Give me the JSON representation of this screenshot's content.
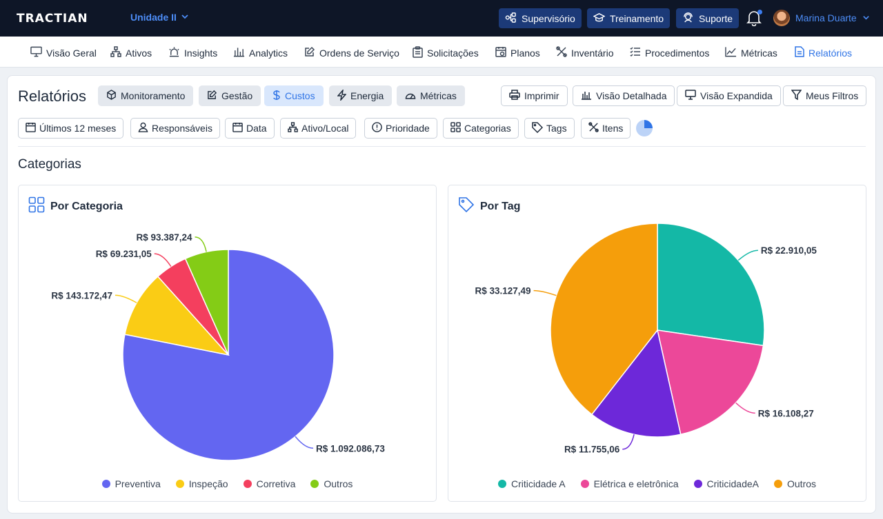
{
  "header": {
    "logo": "TRACTIAN",
    "unit": "Unidade II",
    "buttons": [
      {
        "label": "Supervisório",
        "icon": "workflow-icon"
      },
      {
        "label": "Treinamento",
        "icon": "graduation-cap-icon"
      },
      {
        "label": "Suporte",
        "icon": "headset-icon"
      }
    ],
    "user_name": "Marina Duarte"
  },
  "nav": {
    "items": [
      {
        "label": "Visão Geral",
        "icon": "monitor-icon"
      },
      {
        "label": "Ativos",
        "icon": "hierarchy-icon"
      },
      {
        "label": "Insights",
        "icon": "alert-light-icon"
      },
      {
        "label": "Analytics",
        "icon": "bar-chart-icon"
      },
      {
        "label": "Ordens de Serviço",
        "icon": "edit-icon"
      },
      {
        "label": "Solicitações",
        "icon": "clipboard-icon"
      },
      {
        "label": "Planos",
        "icon": "calendar-clock-icon"
      },
      {
        "label": "Inventário",
        "icon": "tools-icon"
      },
      {
        "label": "Procedimentos",
        "icon": "checklist-icon"
      },
      {
        "label": "Métricas",
        "icon": "line-chart-icon"
      },
      {
        "label": "Relatórios",
        "icon": "document-icon"
      }
    ],
    "active": "Relatórios"
  },
  "page": {
    "title": "Relatórios",
    "tabs": [
      {
        "label": "Monitoramento",
        "icon": "cube-icon"
      },
      {
        "label": "Gestão",
        "icon": "edit-icon"
      },
      {
        "label": "Custos",
        "icon": "dollar-icon"
      },
      {
        "label": "Energia",
        "icon": "lightning-icon"
      },
      {
        "label": "Métricas",
        "icon": "gauge-icon"
      }
    ],
    "active_tab": "Custos",
    "actions": [
      {
        "label": "Imprimir",
        "icon": "printer-icon"
      },
      {
        "label": "Visão Detalhada",
        "icon": "bar-chart-icon"
      },
      {
        "label": "Visão Expandida",
        "icon": "monitor-icon"
      },
      {
        "label": "Meus Filtros",
        "icon": "filter-icon"
      }
    ],
    "filters": [
      {
        "label": "Últimos 12 meses",
        "icon": "calendar-icon"
      },
      {
        "label": "Responsáveis",
        "icon": "user-icon"
      },
      {
        "label": "Data",
        "icon": "calendar-icon"
      },
      {
        "label": "Ativo/Local",
        "icon": "hierarchy-icon"
      },
      {
        "label": "Prioridade",
        "icon": "alert-circle-icon"
      },
      {
        "label": "Categorias",
        "icon": "grid-icon"
      },
      {
        "label": "Tags",
        "icon": "tag-icon"
      },
      {
        "label": "Itens",
        "icon": "tools-icon"
      }
    ],
    "section_title": "Categorias"
  },
  "colors": {
    "accent": "#2f74e6",
    "preventiva": "#6366f1",
    "inspecao": "#facc15",
    "corretiva": "#f43f5e",
    "outros_cat": "#84cc16",
    "criticidade_a": "#14b8a6",
    "eletrica": "#ec4899",
    "criticidadeA2": "#6d28d9",
    "outros_tag": "#f59e0b"
  },
  "chart_data": [
    {
      "type": "pie",
      "title": "Por Categoria",
      "icon": "grid-icon",
      "slices": [
        {
          "name": "Preventiva",
          "value": 1092086.73,
          "label": "R$ 1.092.086,73",
          "color": "#6366f1"
        },
        {
          "name": "Inspeção",
          "value": 143172.47,
          "label": "R$ 143.172,47",
          "color": "#facc15"
        },
        {
          "name": "Corretiva",
          "value": 69231.05,
          "label": "R$ 69.231,05",
          "color": "#f43f5e"
        },
        {
          "name": "Outros",
          "value": 93387.24,
          "label": "R$ 93.387,24",
          "color": "#84cc16"
        }
      ],
      "legend": [
        "Preventiva",
        "Inspeção",
        "Corretiva",
        "Outros"
      ]
    },
    {
      "type": "pie",
      "title": "Por Tag",
      "icon": "tag-icon",
      "slices": [
        {
          "name": "Criticidade A",
          "value": 22910.05,
          "label": "R$ 22.910,05",
          "color": "#14b8a6"
        },
        {
          "name": "Elétrica e eletrônica",
          "value": 16108.27,
          "label": "R$ 16.108,27",
          "color": "#ec4899"
        },
        {
          "name": "CriticidadeA",
          "value": 11755.06,
          "label": "R$ 11.755,06",
          "color": "#6d28d9"
        },
        {
          "name": "Outros",
          "value": 33127.49,
          "label": "R$ 33.127,49",
          "color": "#f59e0b"
        }
      ],
      "legend": [
        "Criticidade A",
        "Elétrica e eletrônica",
        "CriticidadeA",
        "Outros"
      ]
    }
  ]
}
